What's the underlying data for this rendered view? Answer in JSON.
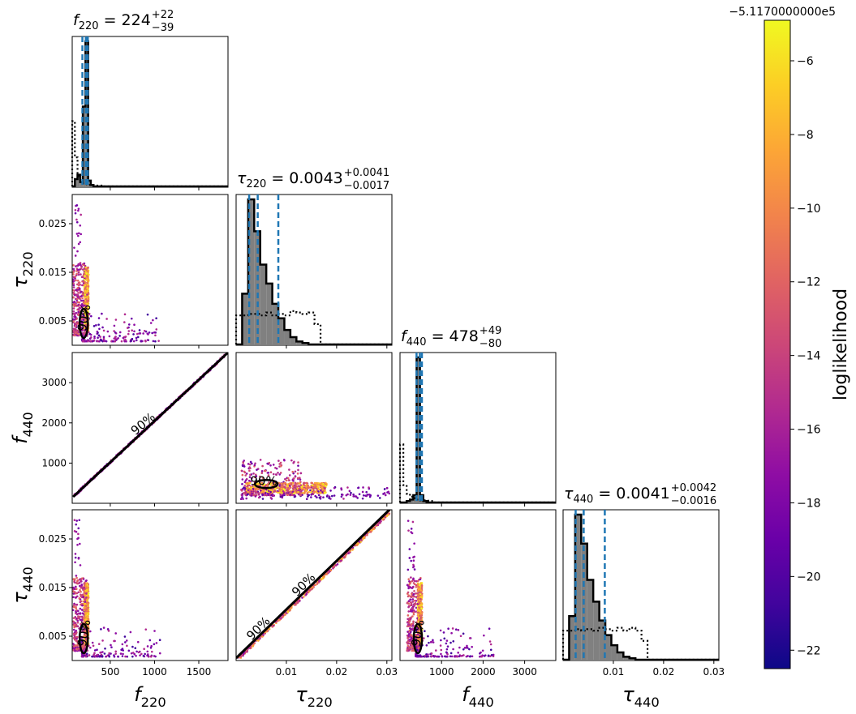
{
  "chart_data": {
    "type": "scatter",
    "subtype": "corner-plot",
    "parameters": [
      {
        "key": "f220",
        "sym": "f",
        "sub": "220",
        "range": [
          70,
          1830
        ],
        "ticks": [
          500,
          1000,
          1500
        ],
        "tick_labels": [
          "500",
          "1000",
          "1500"
        ]
      },
      {
        "key": "tau220",
        "sym": "τ",
        "sub": "220",
        "range": [
          0.0,
          0.031
        ],
        "ticks": [
          0.005,
          0.015,
          0.025
        ],
        "tick_labels": [
          "0.005",
          "0.015",
          "0.025"
        ],
        "x_ticks": [
          0.01,
          0.02,
          0.03
        ],
        "x_tick_labels": [
          "0.01",
          "0.02",
          "0.03"
        ]
      },
      {
        "key": "f440",
        "sym": "f",
        "sub": "440",
        "range": [
          0,
          3750
        ],
        "ticks": [
          1000,
          2000,
          3000
        ],
        "tick_labels": [
          "1000",
          "2000",
          "3000"
        ]
      },
      {
        "key": "tau440",
        "sym": "τ",
        "sub": "440",
        "range": [
          0.0,
          0.031
        ],
        "ticks": [
          0.005,
          0.015,
          0.025
        ],
        "tick_labels": [
          "0.005",
          "0.015",
          "0.025"
        ],
        "x_ticks": [
          0.01,
          0.02,
          0.03
        ],
        "x_tick_labels": [
          "0.01",
          "0.02",
          "0.03"
        ]
      }
    ],
    "titles": [
      {
        "main": "224",
        "plus": "+22",
        "minus": "−39"
      },
      {
        "main": "0.0043",
        "plus": "+0.0041",
        "minus": "−0.0017"
      },
      {
        "main": "478",
        "plus": "+49",
        "minus": "−80"
      },
      {
        "main": "0.0041",
        "plus": "+0.0042",
        "minus": "−0.0016"
      }
    ],
    "histograms": [
      {
        "edges": [
          70,
          100,
          130,
          160,
          190,
          220,
          250,
          280,
          310,
          340,
          370,
          400
        ],
        "posterior": [
          0,
          0.05,
          0.08,
          0.03,
          0.55,
          1.0,
          0.04,
          0.01,
          0.0,
          0.0,
          0.0
        ],
        "prior": [
          0.45,
          0.2,
          0.07,
          0.03,
          0.02,
          0.015,
          0.01,
          0.01,
          0.008,
          0.006,
          0.006
        ],
        "quantiles": [
          185,
          224,
          246
        ]
      },
      {
        "edges": [
          0.0,
          0.0012,
          0.0024,
          0.0036,
          0.0048,
          0.006,
          0.0072,
          0.0084,
          0.0096,
          0.0108,
          0.012,
          0.0132,
          0.0144,
          0.0156,
          0.0168,
          0.018
        ],
        "posterior": [
          0.0,
          0.35,
          1.0,
          0.78,
          0.55,
          0.42,
          0.28,
          0.18,
          0.1,
          0.05,
          0.02,
          0.01,
          0.0,
          0.0,
          0.0
        ],
        "prior": [
          0.2,
          0.2,
          0.21,
          0.21,
          0.2,
          0.22,
          0.2,
          0.21,
          0.2,
          0.23,
          0.22,
          0.21,
          0.22,
          0.14,
          0.0
        ],
        "quantiles": [
          0.0026,
          0.0043,
          0.0084
        ]
      },
      {
        "edges": [
          0,
          80,
          160,
          240,
          320,
          400,
          480,
          560,
          640,
          720,
          800
        ],
        "posterior": [
          0,
          0,
          0.01,
          0.02,
          0.05,
          1.0,
          0.05,
          0.01,
          0.0,
          0.0
        ],
        "prior": [
          0.4,
          0.12,
          0.06,
          0.04,
          0.03,
          0.02,
          0.015,
          0.015,
          0.012,
          0.01
        ],
        "quantiles": [
          398,
          478,
          527
        ]
      },
      {
        "edges": [
          0.0,
          0.0012,
          0.0024,
          0.0036,
          0.0048,
          0.006,
          0.0072,
          0.0084,
          0.0096,
          0.0108,
          0.012,
          0.0132,
          0.0144,
          0.0156,
          0.0168,
          0.018
        ],
        "posterior": [
          0.0,
          0.3,
          1.0,
          0.8,
          0.55,
          0.4,
          0.27,
          0.17,
          0.1,
          0.05,
          0.02,
          0.01,
          0.0,
          0.0,
          0.0
        ],
        "prior": [
          0.2,
          0.2,
          0.21,
          0.2,
          0.21,
          0.2,
          0.22,
          0.21,
          0.2,
          0.22,
          0.2,
          0.22,
          0.2,
          0.13,
          0.0
        ],
        "quantiles": [
          0.0025,
          0.0041,
          0.0083
        ]
      }
    ],
    "contour_label": "90%",
    "colorbar": {
      "label": "loglikelihood",
      "offset_text": "−5.1170000000e5",
      "range": [
        -22.5,
        -4.9
      ],
      "ticks": [
        -22,
        -20,
        -18,
        -16,
        -14,
        -12,
        -10,
        -8,
        -6
      ],
      "tick_labels": [
        "−22",
        "−20",
        "−18",
        "−16",
        "−14",
        "−12",
        "−10",
        "−8",
        "−6"
      ],
      "colormap": "plasma"
    },
    "colors": {
      "quantile_line": "#1f77b4",
      "histogram_fill": "#808080",
      "outline": "#000000"
    }
  }
}
